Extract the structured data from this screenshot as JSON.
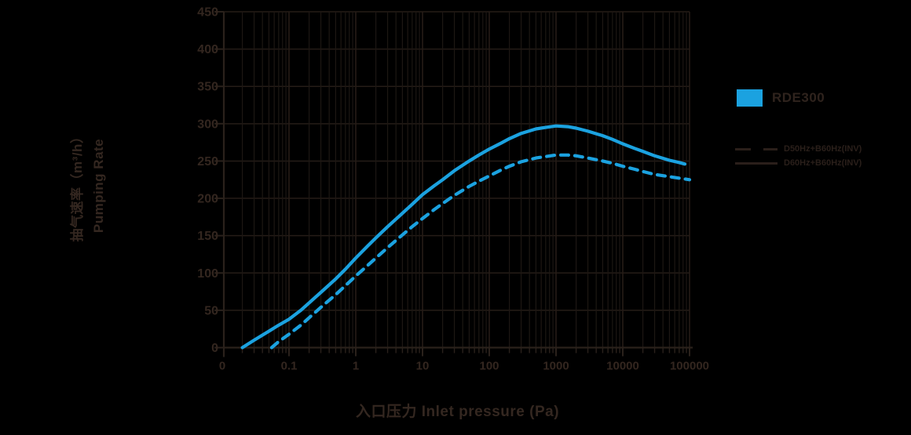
{
  "colors": {
    "background": "#000000",
    "grid_minor": "#1d1713",
    "grid_major": "#251c17",
    "axis": "#2a211b",
    "label_text": "#33261f",
    "series_blue": "#1ba2e0",
    "legend_line": "#2a1f1a"
  },
  "axis_titles": {
    "x": "入口压力 Inlet pressure (Pa)",
    "y_line1": "抽气速率（m³/h）",
    "y_line2": "Pumping Rate"
  },
  "legend": {
    "model": "RDE300",
    "entries": [
      {
        "label": "D50Hz+B60Hz(INV)",
        "style": "dashed"
      },
      {
        "label": "D60Hz+B60Hz(INV)",
        "style": "solid"
      }
    ]
  },
  "chart_data": {
    "type": "line",
    "title": "",
    "xlabel": "入口压力 Inlet pressure (Pa)",
    "ylabel": "抽气速率（m³/h） Pumping Rate",
    "x_scale": "log10",
    "grid": true,
    "legend_position": "right",
    "ylim": [
      0,
      450
    ],
    "y_ticks": [
      0,
      50,
      100,
      150,
      200,
      250,
      300,
      350,
      400,
      450
    ],
    "x_tick_values": [
      0.01,
      0.1,
      1,
      10,
      100,
      1000,
      10000,
      100000
    ],
    "x_tick_labels": [
      "0",
      "0.1",
      "1",
      "10",
      "100",
      "1000",
      "10000",
      "100000"
    ],
    "x_minor_decades": [
      -2,
      4
    ],
    "series": [
      {
        "name": "D60Hz+B60Hz(INV)",
        "line_style": "solid",
        "color": "#1ba2e0",
        "points": [
          [
            0.02,
            0
          ],
          [
            0.03,
            10
          ],
          [
            0.05,
            22
          ],
          [
            0.07,
            30
          ],
          [
            0.1,
            38
          ],
          [
            0.15,
            50
          ],
          [
            0.2,
            60
          ],
          [
            0.3,
            74
          ],
          [
            0.5,
            92
          ],
          [
            0.7,
            105
          ],
          [
            1,
            120
          ],
          [
            1.5,
            136
          ],
          [
            2,
            147
          ],
          [
            3,
            162
          ],
          [
            5,
            180
          ],
          [
            7,
            192
          ],
          [
            10,
            205
          ],
          [
            15,
            217
          ],
          [
            20,
            225
          ],
          [
            30,
            237
          ],
          [
            50,
            250
          ],
          [
            70,
            258
          ],
          [
            100,
            266
          ],
          [
            150,
            274
          ],
          [
            200,
            280
          ],
          [
            300,
            287
          ],
          [
            500,
            293
          ],
          [
            700,
            295
          ],
          [
            1000,
            297
          ],
          [
            1500,
            296
          ],
          [
            2000,
            294
          ],
          [
            3000,
            290
          ],
          [
            5000,
            284
          ],
          [
            7000,
            279
          ],
          [
            10000,
            273
          ],
          [
            15000,
            267
          ],
          [
            20000,
            263
          ],
          [
            30000,
            257
          ],
          [
            50000,
            251
          ],
          [
            70000,
            248
          ],
          [
            85000,
            246
          ]
        ]
      },
      {
        "name": "D50Hz+B60Hz(INV)",
        "line_style": "dashed",
        "color": "#1ba2e0",
        "points": [
          [
            0.055,
            0
          ],
          [
            0.07,
            8
          ],
          [
            0.1,
            18
          ],
          [
            0.15,
            30
          ],
          [
            0.2,
            40
          ],
          [
            0.3,
            54
          ],
          [
            0.5,
            71
          ],
          [
            0.7,
            83
          ],
          [
            1,
            96
          ],
          [
            1.5,
            110
          ],
          [
            2,
            120
          ],
          [
            3,
            134
          ],
          [
            5,
            151
          ],
          [
            7,
            162
          ],
          [
            10,
            173
          ],
          [
            15,
            185
          ],
          [
            20,
            193
          ],
          [
            30,
            204
          ],
          [
            50,
            216
          ],
          [
            70,
            223
          ],
          [
            100,
            230
          ],
          [
            150,
            238
          ],
          [
            200,
            243
          ],
          [
            300,
            249
          ],
          [
            500,
            254
          ],
          [
            700,
            256
          ],
          [
            1000,
            258
          ],
          [
            1500,
            258
          ],
          [
            2000,
            257
          ],
          [
            3000,
            254
          ],
          [
            5000,
            250
          ],
          [
            7000,
            247
          ],
          [
            10000,
            243
          ],
          [
            15000,
            239
          ],
          [
            20000,
            236
          ],
          [
            30000,
            232
          ],
          [
            50000,
            229
          ],
          [
            70000,
            227
          ],
          [
            100000,
            225
          ]
        ]
      }
    ]
  }
}
